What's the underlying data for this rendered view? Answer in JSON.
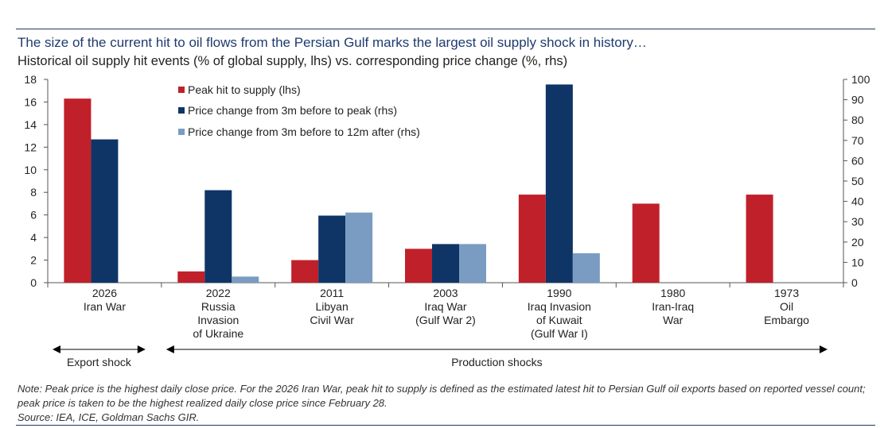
{
  "header": {
    "title": "The size of the current hit to oil flows from the Persian Gulf marks the largest oil supply shock in history…",
    "subtitle": "Historical oil supply hit events (% of global supply, lhs) vs. corresponding price change (%, rhs)"
  },
  "colors": {
    "supply": "#c0202a",
    "peak_price": "#0e3566",
    "price_12m": "#7a9cc2",
    "rule": "#1f3864"
  },
  "chart_data": {
    "type": "bar",
    "categories": [
      [
        "2026",
        "Iran War"
      ],
      [
        "2022",
        "Russia",
        "Invasion",
        "of Ukraine"
      ],
      [
        "2011",
        "Libyan",
        "Civil War"
      ],
      [
        "2003",
        "Iraq War",
        "(Gulf War 2)"
      ],
      [
        "1990",
        "Iraq Invasion",
        "of Kuwait",
        "(Gulf War I)"
      ],
      [
        "1980",
        "Iran-Iraq",
        "War"
      ],
      [
        "1973",
        "Oil",
        "Embargo"
      ]
    ],
    "series": [
      {
        "name": "Peak hit to supply (lhs)",
        "axis": "left",
        "color": "#c0202a",
        "values": [
          16.3,
          1.0,
          2.0,
          3.0,
          7.8,
          7.0,
          7.8
        ]
      },
      {
        "name": "Price change from 3m before to peak (rhs)",
        "axis": "right",
        "color": "#0e3566",
        "values": [
          70.5,
          45.5,
          33,
          19,
          97.5,
          null,
          null
        ]
      },
      {
        "name": "Price change from 3m before to 12m after (rhs)",
        "axis": "right",
        "color": "#7a9cc2",
        "values": [
          null,
          3,
          34.5,
          19,
          14.5,
          null,
          null
        ]
      }
    ],
    "yleft": {
      "lim": [
        0,
        18
      ],
      "ticks": [
        "0",
        "2",
        "4",
        "6",
        "8",
        "10",
        "12",
        "14",
        "16",
        "18"
      ]
    },
    "yright": {
      "lim": [
        0,
        100
      ],
      "ticks": [
        "0",
        "10",
        "20",
        "30",
        "40",
        "50",
        "60",
        "70",
        "80",
        "90",
        "100"
      ]
    },
    "legend_position": "top-left",
    "annotations": [
      {
        "label": "Export shock",
        "from_category": 0,
        "to_category": 0
      },
      {
        "label": "Production shocks",
        "from_category": 1,
        "to_category": 6
      }
    ]
  },
  "footer": {
    "note": "Note: Peak price is the highest daily close price. For the 2026 Iran War, peak hit to supply is defined as the estimated latest hit to Persian Gulf oil exports based on reported vessel count; peak price is taken to be the highest realized daily close price since February 28.",
    "source": "Source: IEA, ICE, Goldman Sachs GIR."
  }
}
